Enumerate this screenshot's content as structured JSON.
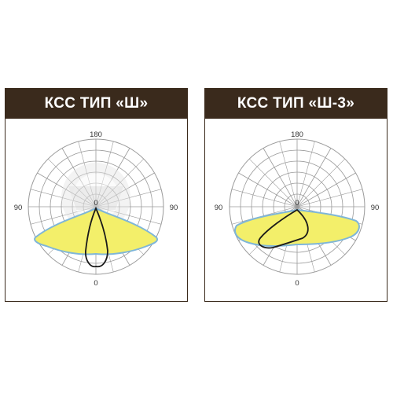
{
  "panels": [
    {
      "title": "КСС ТИП «Ш»",
      "labels": {
        "top": "180",
        "left": "90",
        "right": "90",
        "bottom": "0",
        "center": "0"
      }
    },
    {
      "title": "КСС ТИП «Ш-3»",
      "labels": {
        "top": "180",
        "left": "90",
        "right": "90",
        "bottom": "0",
        "center": "0"
      }
    }
  ],
  "colors": {
    "header_bg": "#3a2a1c",
    "header_text": "#ffffff",
    "grid": "#9a9a9a",
    "fill_yellow": "#f3ef6a",
    "edge_blue": "#7fb6d8",
    "curve_black": "#1a1a1a",
    "watermark_gray": "#d8d8d8"
  }
}
